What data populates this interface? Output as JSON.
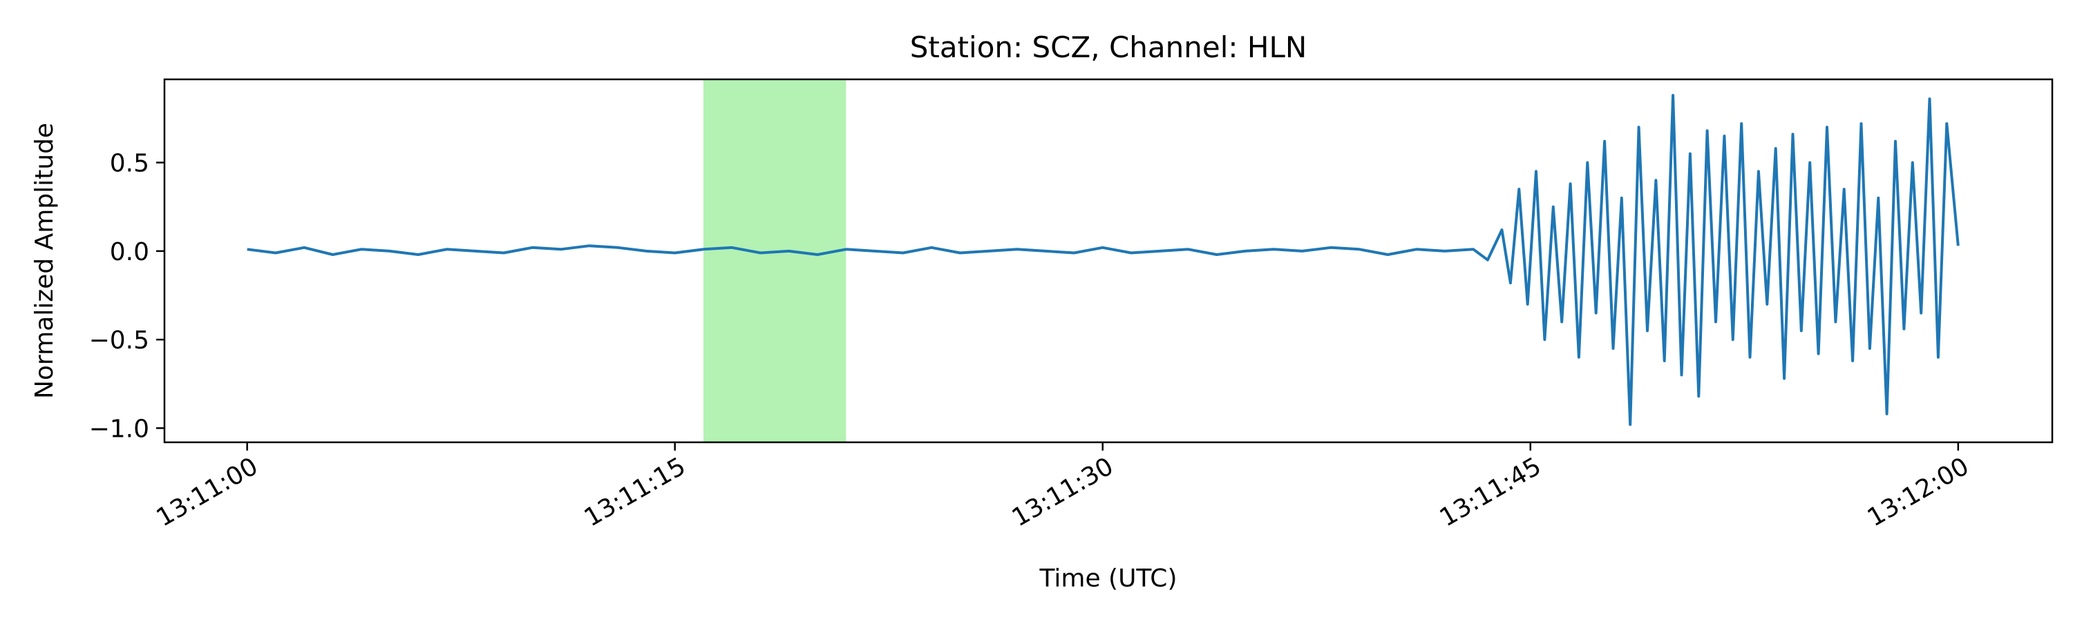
{
  "chart_data": {
    "type": "line",
    "title": "Station: SCZ, Channel: HLN",
    "xlabel": "Time (UTC)",
    "ylabel": "Normalized Amplitude",
    "x_range_seconds": [
      0,
      60
    ],
    "xlim": [
      -2.9,
      63.3
    ],
    "ylim": [
      -1.08,
      0.97
    ],
    "xticks": [
      {
        "value": 0,
        "label": "13:11:00"
      },
      {
        "value": 15,
        "label": "13:11:15"
      },
      {
        "value": 30,
        "label": "13:11:30"
      },
      {
        "value": 45,
        "label": "13:11:45"
      },
      {
        "value": 60,
        "label": "13:12:00"
      }
    ],
    "yticks": [
      {
        "value": 0.5,
        "label": "0.5"
      },
      {
        "value": 0.0,
        "label": "0.0"
      },
      {
        "value": -0.5,
        "label": "−0.5"
      },
      {
        "value": -1.0,
        "label": "−1.0"
      }
    ],
    "highlight_window": {
      "start": 16.0,
      "end": 21.0,
      "color": "#b3f2b3"
    },
    "series": [
      {
        "color": "#1f77b4",
        "x": [
          0,
          1,
          2,
          3,
          4,
          5,
          6,
          7,
          8,
          9,
          10,
          11,
          12,
          13,
          14,
          15,
          16,
          17,
          18,
          19,
          20,
          21,
          22,
          23,
          24,
          25,
          26,
          27,
          28,
          29,
          30,
          31,
          32,
          33,
          34,
          35,
          36,
          37,
          38,
          39,
          40,
          41,
          42,
          43,
          43.5,
          44,
          44.3,
          44.6,
          44.9,
          45.2,
          45.5,
          45.8,
          46.1,
          46.4,
          46.7,
          47.0,
          47.3,
          47.6,
          47.9,
          48.2,
          48.5,
          48.8,
          49.1,
          49.4,
          49.7,
          50.0,
          50.3,
          50.6,
          50.9,
          51.2,
          51.5,
          51.8,
          52.1,
          52.4,
          52.7,
          53.0,
          53.3,
          53.6,
          53.9,
          54.2,
          54.5,
          54.8,
          55.1,
          55.4,
          55.7,
          56.0,
          56.3,
          56.6,
          56.9,
          57.2,
          57.5,
          57.8,
          58.1,
          58.4,
          58.7,
          59.0,
          59.3,
          59.6,
          60.0
        ],
        "y": [
          0.01,
          -0.01,
          0.02,
          -0.02,
          0.01,
          0.0,
          -0.02,
          0.01,
          0.0,
          -0.01,
          0.02,
          0.01,
          0.03,
          0.02,
          0.0,
          -0.01,
          0.01,
          0.02,
          -0.01,
          0.0,
          -0.02,
          0.01,
          0.0,
          -0.01,
          0.02,
          -0.01,
          0.0,
          0.01,
          0.0,
          -0.01,
          0.02,
          -0.01,
          0.0,
          0.01,
          -0.02,
          0.0,
          0.01,
          0.0,
          0.02,
          0.01,
          -0.02,
          0.01,
          0.0,
          0.01,
          -0.05,
          0.12,
          -0.18,
          0.35,
          -0.3,
          0.45,
          -0.5,
          0.25,
          -0.4,
          0.38,
          -0.6,
          0.5,
          -0.35,
          0.62,
          -0.55,
          0.3,
          -0.98,
          0.7,
          -0.45,
          0.4,
          -0.62,
          0.88,
          -0.7,
          0.55,
          -0.82,
          0.68,
          -0.4,
          0.65,
          -0.5,
          0.72,
          -0.6,
          0.45,
          -0.3,
          0.58,
          -0.72,
          0.66,
          -0.45,
          0.5,
          -0.58,
          0.7,
          -0.4,
          0.35,
          -0.62,
          0.72,
          -0.55,
          0.3,
          -0.92,
          0.62,
          -0.44,
          0.5,
          -0.35,
          0.86,
          -0.6,
          0.72,
          0.03
        ]
      }
    ]
  }
}
